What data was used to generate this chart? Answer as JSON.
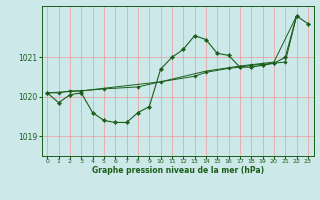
{
  "background_color": "#cce8e8",
  "plot_bg_color": "#cce8e8",
  "grid_color": "#ee9999",
  "line_color": "#1a5e1a",
  "marker_color": "#1a5e1a",
  "xlabel": "Graphe pression niveau de la mer (hPa)",
  "ylim": [
    1018.5,
    1022.3
  ],
  "xlim": [
    -0.5,
    23.5
  ],
  "yticks": [
    1019,
    1020,
    1021
  ],
  "xticks": [
    0,
    1,
    2,
    3,
    4,
    5,
    6,
    7,
    8,
    9,
    10,
    11,
    12,
    13,
    14,
    15,
    16,
    17,
    18,
    19,
    20,
    21,
    22,
    23
  ],
  "series1_x": [
    0,
    1,
    2,
    3,
    4,
    5,
    6,
    7,
    8,
    9,
    10,
    11,
    12,
    13,
    14,
    15,
    16,
    17,
    18,
    19,
    20,
    21,
    22,
    23
  ],
  "series1_y": [
    1020.1,
    1019.85,
    1020.05,
    1020.1,
    1019.6,
    1019.4,
    1019.35,
    1019.35,
    1019.6,
    1019.75,
    1020.7,
    1021.0,
    1021.2,
    1021.55,
    1021.45,
    1021.1,
    1021.05,
    1020.75,
    1020.75,
    1020.8,
    1020.85,
    1021.0,
    1022.05,
    1021.85
  ],
  "series2_x": [
    0,
    1,
    2,
    3,
    5,
    8,
    10,
    13,
    14,
    16,
    17,
    18,
    19,
    20,
    21,
    22
  ],
  "series2_y": [
    1020.1,
    1020.1,
    1020.15,
    1020.15,
    1020.2,
    1020.25,
    1020.38,
    1020.52,
    1020.62,
    1020.72,
    1020.75,
    1020.8,
    1020.82,
    1020.85,
    1020.88,
    1022.05
  ],
  "series3_x": [
    0,
    3,
    10,
    14,
    17,
    20,
    22
  ],
  "series3_y": [
    1020.1,
    1020.15,
    1020.38,
    1020.65,
    1020.78,
    1020.88,
    1022.05
  ]
}
